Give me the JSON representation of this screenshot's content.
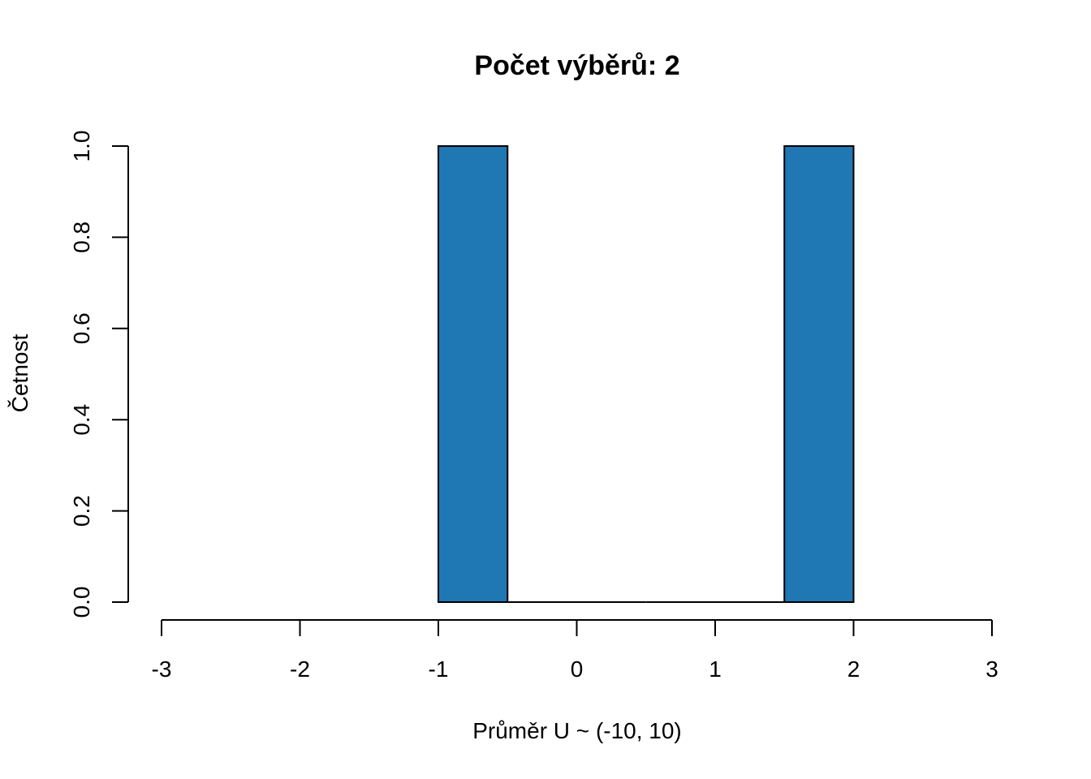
{
  "chart_data": {
    "type": "bar",
    "title": "Počet výběrů: 2",
    "xlabel": "Průměr U ~ (-10, 10)",
    "ylabel": "Četnost",
    "xlim": [
      -3,
      3
    ],
    "ylim": [
      0,
      1
    ],
    "x_ticks": [
      -3,
      -2,
      -1,
      0,
      1,
      2,
      3
    ],
    "x_tick_labels": [
      "-3",
      "-2",
      "-1",
      "0",
      "1",
      "2",
      "3"
    ],
    "y_ticks": [
      0,
      0.2,
      0.4,
      0.6,
      0.8,
      1.0
    ],
    "y_tick_labels": [
      "0.0",
      "0.2",
      "0.4",
      "0.6",
      "0.8",
      "1.0"
    ],
    "bins": [
      {
        "start": -1.0,
        "end": -0.5,
        "count": 1
      },
      {
        "start": -0.5,
        "end": 0.0,
        "count": 0
      },
      {
        "start": 0.0,
        "end": 0.5,
        "count": 0
      },
      {
        "start": 0.5,
        "end": 1.0,
        "count": 0
      },
      {
        "start": 1.0,
        "end": 1.5,
        "count": 0
      },
      {
        "start": 1.5,
        "end": 2.0,
        "count": 1
      }
    ],
    "bar_color": "#1f77b4",
    "grid": false,
    "legend": "none"
  }
}
